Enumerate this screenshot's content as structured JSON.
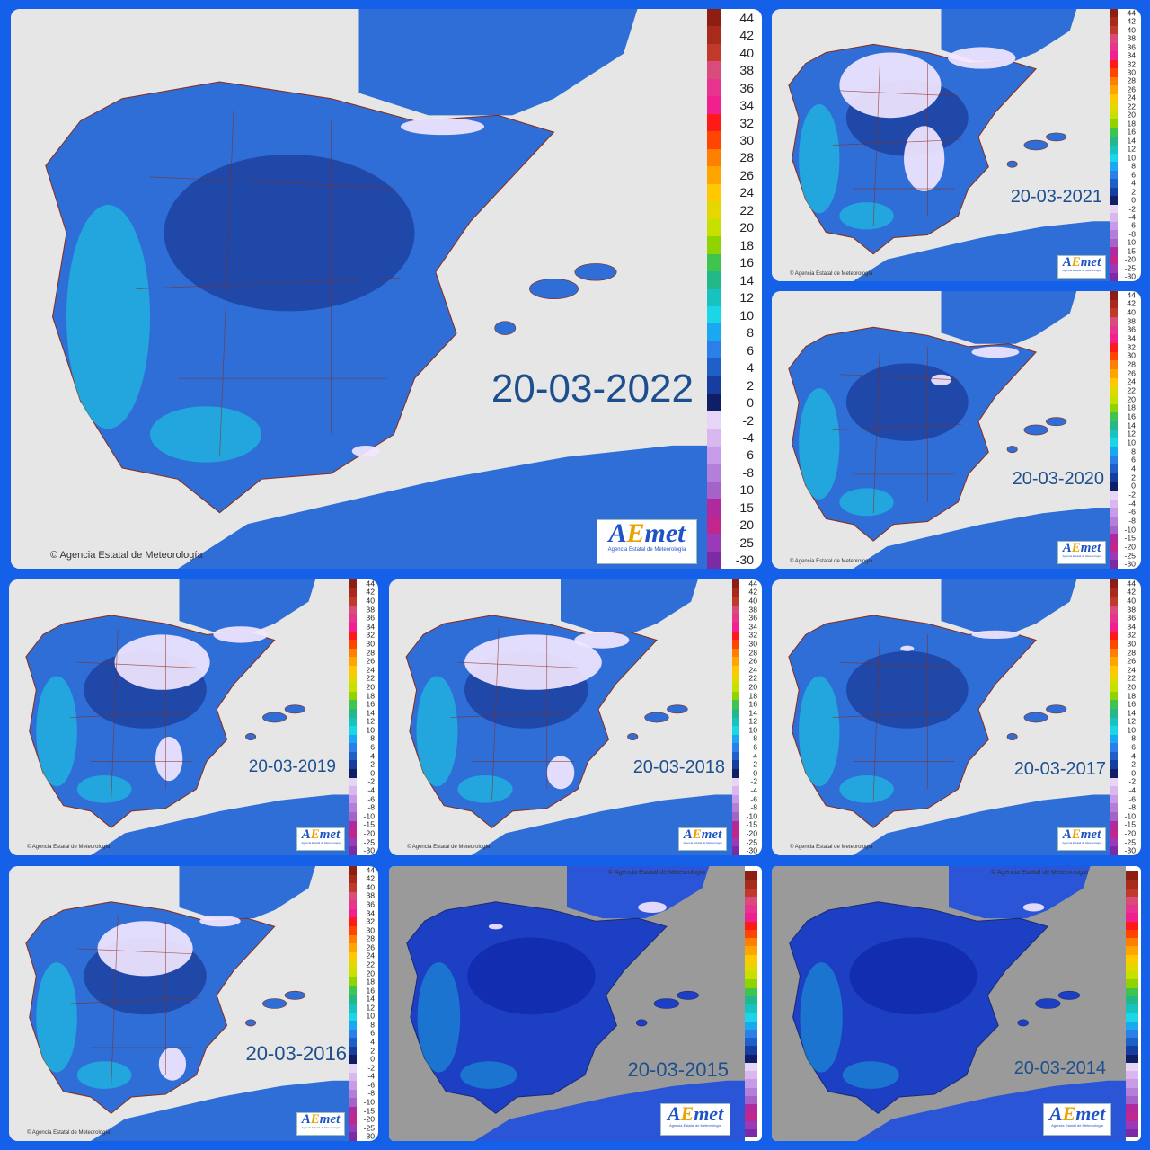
{
  "panels": [
    {
      "date": "20-03-2022",
      "copyright": "© Agencia Estatal de Meteorología",
      "logo": "AEmet",
      "logo_sub": "Agencia Estatal de Meteorología"
    },
    {
      "date": "20-03-2021",
      "copyright": "© Agencia Estatal de Meteorología",
      "logo": "AEmet",
      "logo_sub": "Agencia Estatal de Meteorología"
    },
    {
      "date": "20-03-2020",
      "copyright": "© Agencia Estatal de Meteorología",
      "logo": "AEmet",
      "logo_sub": "Agencia Estatal de Meteorología"
    },
    {
      "date": "20-03-2019",
      "copyright": "© Agencia Estatal de Meteorología",
      "logo": "AEmet",
      "logo_sub": "Agencia Estatal de Meteorología"
    },
    {
      "date": "20-03-2018",
      "copyright": "© Agencia Estatal de Meteorología",
      "logo": "AEmet",
      "logo_sub": "Agencia Estatal de Meteorología"
    },
    {
      "date": "20-03-2017",
      "copyright": "© Agencia Estatal de Meteorología",
      "logo": "AEmet",
      "logo_sub": "Agencia Estatal de Meteorología"
    },
    {
      "date": "20-03-2016",
      "copyright": "© Agencia Estatal de Meteorología",
      "logo": "AEmet",
      "logo_sub": "Agencia Estatal de Meteorología"
    },
    {
      "date": "20-03-2015",
      "copyright": "© Agencia Estatal de Meteorología",
      "logo": "AEmet",
      "logo_sub": "Agencia Estatal de Meteorología"
    },
    {
      "date": "20-03-2014",
      "copyright": "© Agencia Estatal de Meteorología",
      "logo": "AEmet",
      "logo_sub": "Agencia Estatal de Meteorología"
    }
  ],
  "legend": {
    "ticks": [
      "44",
      "42",
      "40",
      "38",
      "36",
      "34",
      "32",
      "30",
      "28",
      "26",
      "24",
      "22",
      "20",
      "18",
      "16",
      "14",
      "12",
      "10",
      "8",
      "6",
      "4",
      "2",
      "0",
      "-2",
      "-4",
      "-6",
      "-8",
      "-10",
      "-15",
      "-20",
      "-25",
      "-30"
    ],
    "colors": [
      "#8e1d12",
      "#a82a1c",
      "#c0392b",
      "#d94b7b",
      "#e8348f",
      "#f0208e",
      "#ff1a1a",
      "#ff4500",
      "#ff7f00",
      "#ffa500",
      "#ffc800",
      "#e5d800",
      "#c6e000",
      "#8fd400",
      "#3fc44f",
      "#22b88a",
      "#18c2c0",
      "#1ad6e6",
      "#1aa8f0",
      "#2a7fe8",
      "#1f5fc8",
      "#173e9e",
      "#0e1f66",
      "#e6d5f5",
      "#d9b8f0",
      "#c89be8",
      "#b47fd8",
      "#a463c8",
      "#b02a9e",
      "#c0268c",
      "#9b3ab8",
      "#7d2aa6"
    ]
  },
  "colors": {
    "frame": "#1560e8",
    "sea": "#e6e6e6",
    "sea_older": "#9a9a9a",
    "land": "#2f6ed6",
    "land_dark": "#1b3c9a",
    "coast_cyan": "#1ad6e6",
    "snow": "#f2e6ff",
    "borders": "#8b2a14"
  }
}
